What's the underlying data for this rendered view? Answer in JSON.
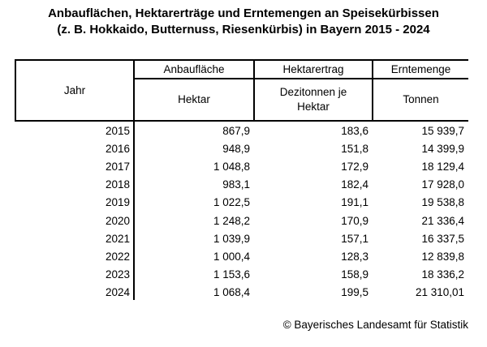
{
  "title": {
    "line1": "Anbauflächen, Hektarerträge und Erntemengen an Speisekürbissen",
    "line2": "(z. B. Hokkaido, Butternuss, Riesenkürbis) in Bayern 2015 - 2024"
  },
  "table": {
    "header": {
      "jahr": "Jahr",
      "anbauflaeche": "Anbaufläche",
      "hektarertrag": "Hektarertrag",
      "erntemenge": "Erntemenge",
      "unit_hektar": "Hektar",
      "unit_dezitonnen": "Dezitonnen je\nHektar",
      "unit_tonnen": "Tonnen"
    },
    "rows": [
      {
        "year": "2015",
        "area": "867,9",
        "yield": "183,6",
        "harvest": "15 939,7"
      },
      {
        "year": "2016",
        "area": "948,9",
        "yield": "151,8",
        "harvest": "14 399,9"
      },
      {
        "year": "2017",
        "area": "1 048,8",
        "yield": "172,9",
        "harvest": "18 129,4"
      },
      {
        "year": "2018",
        "area": "983,1",
        "yield": "182,4",
        "harvest": "17 928,0"
      },
      {
        "year": "2019",
        "area": "1 022,5",
        "yield": "191,1",
        "harvest": "19 538,8"
      },
      {
        "year": "2020",
        "area": "1 248,2",
        "yield": "170,9",
        "harvest": "21 336,4"
      },
      {
        "year": "2021",
        "area": "1 039,9",
        "yield": "157,1",
        "harvest": "16 337,5"
      },
      {
        "year": "2022",
        "area": "1 000,4",
        "yield": "128,3",
        "harvest": "12 839,8"
      },
      {
        "year": "2023",
        "area": "1 153,6",
        "yield": "158,9",
        "harvest": "18 336,2"
      },
      {
        "year": "2024",
        "area": "1 068,4",
        "yield": "199,5",
        "harvest": "21 310,01"
      }
    ]
  },
  "footer": {
    "copyright": "© Bayerisches Landesamt für Statistik"
  },
  "colors": {
    "text": "#000000",
    "background": "#ffffff",
    "border": "#000000"
  },
  "chart_data": {
    "type": "table",
    "title": "Anbauflächen, Hektarerträge und Erntemengen an Speisekürbissen (z. B. Hokkaido, Butternuss, Riesenkürbis) in Bayern 2015 - 2024",
    "columns": [
      "Jahr",
      "Anbaufläche (Hektar)",
      "Hektarertrag (Dezitonnen je Hektar)",
      "Erntemenge (Tonnen)"
    ],
    "rows": [
      [
        2015,
        867.9,
        183.6,
        15939.7
      ],
      [
        2016,
        948.9,
        151.8,
        14399.9
      ],
      [
        2017,
        1048.8,
        172.9,
        18129.4
      ],
      [
        2018,
        983.1,
        182.4,
        17928.0
      ],
      [
        2019,
        1022.5,
        191.1,
        19538.8
      ],
      [
        2020,
        1248.2,
        170.9,
        21336.4
      ],
      [
        2021,
        1039.9,
        157.1,
        16337.5
      ],
      [
        2022,
        1000.4,
        128.3,
        12839.8
      ],
      [
        2023,
        1153.6,
        158.9,
        18336.2
      ],
      [
        2024,
        1068.4,
        199.5,
        21310.01
      ]
    ],
    "source": "© Bayerisches Landesamt für Statistik",
    "decimal_separator": ",",
    "thousands_separator": " "
  }
}
